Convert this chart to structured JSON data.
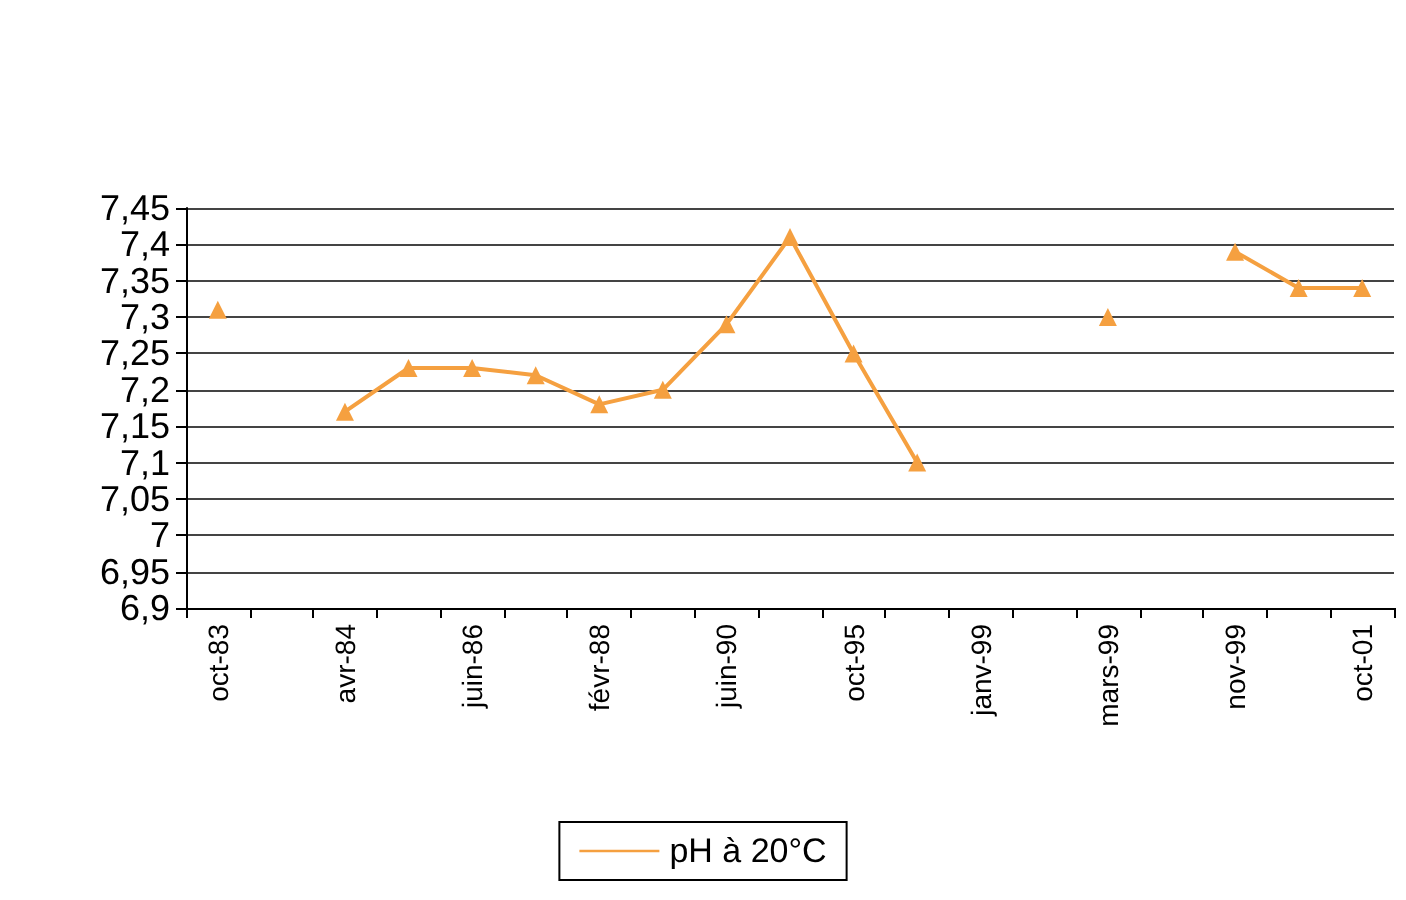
{
  "chart_data": {
    "type": "line",
    "categories": [
      "oct-83",
      null,
      "avr-84",
      null,
      "juin-86",
      null,
      "févr-88",
      null,
      "juin-90",
      null,
      "oct-95",
      null,
      "janv-99",
      null,
      "mars-99",
      null,
      "nov-99",
      null,
      "oct-01"
    ],
    "series": [
      {
        "name": "pH à 20°C",
        "color": "#f5a040",
        "values": [
          7.31,
          null,
          7.17,
          7.23,
          7.23,
          7.22,
          7.18,
          7.2,
          7.29,
          7.41,
          7.25,
          7.1,
          null,
          null,
          7.3,
          null,
          7.39,
          7.34,
          7.34
        ]
      }
    ],
    "ylim": [
      6.9,
      7.45
    ],
    "yticks": [
      {
        "value": 6.9,
        "label": "6,9"
      },
      {
        "value": 6.95,
        "label": "6,95"
      },
      {
        "value": 7,
        "label": "7"
      },
      {
        "value": 7.05,
        "label": "7,05"
      },
      {
        "value": 7.1,
        "label": "7,1"
      },
      {
        "value": 7.15,
        "label": "7,15"
      },
      {
        "value": 7.2,
        "label": "7,2"
      },
      {
        "value": 7.25,
        "label": "7,25"
      },
      {
        "value": 7.3,
        "label": "7,3"
      },
      {
        "value": 7.35,
        "label": "7,35"
      },
      {
        "value": 7.4,
        "label": "7,4"
      },
      {
        "value": 7.45,
        "label": "7,45"
      }
    ],
    "grid": "y",
    "legend": "bottom",
    "marker": "triangle",
    "line_style": "solid"
  }
}
